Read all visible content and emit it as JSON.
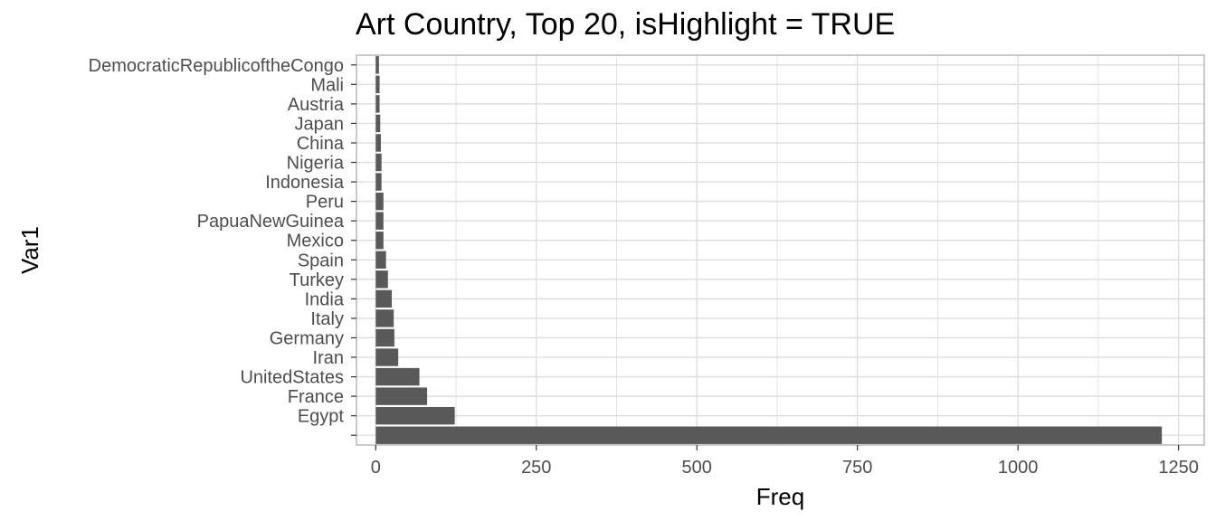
{
  "chart_data": {
    "type": "bar",
    "orientation": "horizontal",
    "title": "Art Country, Top 20, isHighlight = TRUE",
    "xlabel": "Freq",
    "ylabel": "Var1",
    "xlim": [
      -30,
      1290
    ],
    "x_ticks": [
      0,
      250,
      500,
      750,
      1000,
      1250
    ],
    "x_tick_labels": [
      "0",
      "250",
      "500",
      "750",
      "1000",
      "1250"
    ],
    "categories": [
      "",
      "Egypt",
      "France",
      "UnitedStates",
      "Iran",
      "Germany",
      "Italy",
      "India",
      "Turkey",
      "Spain",
      "Mexico",
      "PapuaNewGuinea",
      "Peru",
      "Indonesia",
      "Nigeria",
      "China",
      "Japan",
      "Austria",
      "Mali",
      "DemocraticRepublicoftheCongo"
    ],
    "values": [
      1224,
      123,
      80,
      68,
      35,
      29,
      28,
      25,
      19,
      16,
      12,
      12,
      12,
      9,
      9,
      8,
      7,
      6,
      6,
      5
    ],
    "grid": true,
    "bar_color": "#595959",
    "panel_border_color": "#b3b3b3",
    "grid_color": "#dedede"
  }
}
